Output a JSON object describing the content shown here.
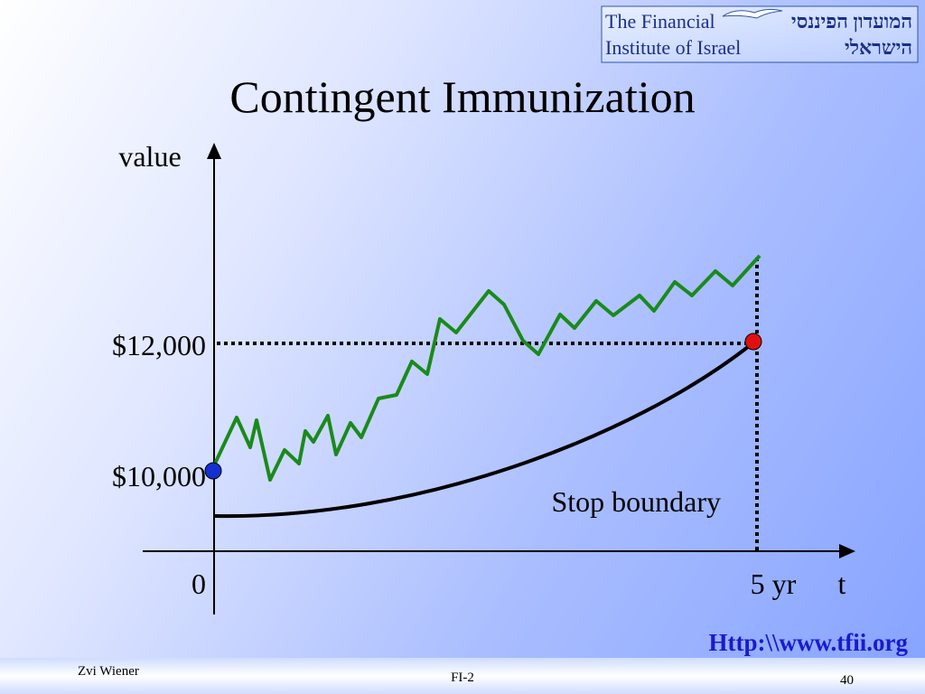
{
  "header": {
    "logo_en": [
      "The Financial",
      "Institute of Israel"
    ],
    "logo_he": [
      "המועדון הפיננסי",
      "הישראלי"
    ]
  },
  "title": "Contingent Immunization",
  "diagram": {
    "y_axis_label": "value",
    "x_axis_label": "t",
    "labels": {
      "high": "$12,000",
      "low": "$10,000",
      "origin": "0",
      "horizon": "5 yr"
    },
    "annotation": "Stop boundary"
  },
  "link": "Http:\\\\www.tfii.org",
  "footer": {
    "author": "Zvi Wiener",
    "course": "FI-2",
    "page": "40"
  }
}
